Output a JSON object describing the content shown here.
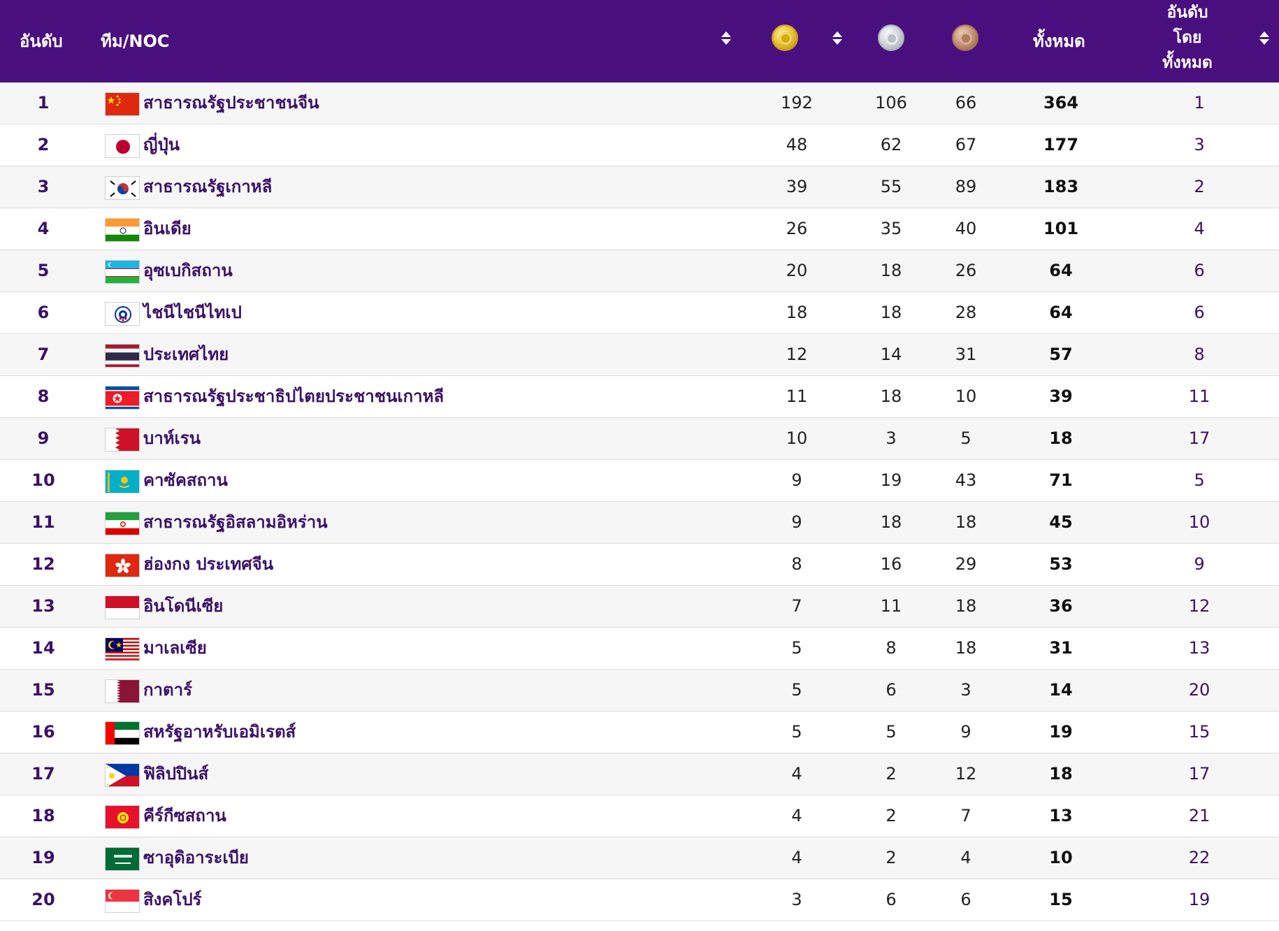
{
  "header": {
    "rank": "อันดับ",
    "team": "ทีม/NOC",
    "total": "ทั้งหมด",
    "rank_by_total_lines": [
      "อันดับ",
      "โดย",
      "ทั้งหมด"
    ],
    "medals": [
      "gold-medal-icon",
      "silver-medal-icon",
      "bronze-medal-icon"
    ]
  },
  "rows": [
    {
      "rank": "1",
      "team": "สาธารณรัฐประชาชนจีน",
      "gold": "192",
      "silver": "106",
      "bronze": "66",
      "total": "364",
      "rank_total": "1",
      "flag": "china"
    },
    {
      "rank": "2",
      "team": "ญี่ปุ่น",
      "gold": "48",
      "silver": "62",
      "bronze": "67",
      "total": "177",
      "rank_total": "3",
      "flag": "japan"
    },
    {
      "rank": "3",
      "team": "สาธารณรัฐเกาหลี",
      "gold": "39",
      "silver": "55",
      "bronze": "89",
      "total": "183",
      "rank_total": "2",
      "flag": "korea"
    },
    {
      "rank": "4",
      "team": "อินเดีย",
      "gold": "26",
      "silver": "35",
      "bronze": "40",
      "total": "101",
      "rank_total": "4",
      "flag": "india"
    },
    {
      "rank": "5",
      "team": "อุซเบกิสถาน",
      "gold": "20",
      "silver": "18",
      "bronze": "26",
      "total": "64",
      "rank_total": "6",
      "flag": "uzbekistan"
    },
    {
      "rank": "6",
      "team": "ไชนีไชนีไทเป",
      "gold": "18",
      "silver": "18",
      "bronze": "28",
      "total": "64",
      "rank_total": "6",
      "flag": "chinese-taipei"
    },
    {
      "rank": "7",
      "team": "ประเทศไทย",
      "gold": "12",
      "silver": "14",
      "bronze": "31",
      "total": "57",
      "rank_total": "8",
      "flag": "thailand"
    },
    {
      "rank": "8",
      "team": "สาธารณรัฐประชาธิปไตยประชาชนเกาหลี",
      "gold": "11",
      "silver": "18",
      "bronze": "10",
      "total": "39",
      "rank_total": "11",
      "flag": "north-korea"
    },
    {
      "rank": "9",
      "team": "บาห์เรน",
      "gold": "10",
      "silver": "3",
      "bronze": "5",
      "total": "18",
      "rank_total": "17",
      "flag": "bahrain"
    },
    {
      "rank": "10",
      "team": "คาซัคสถาน",
      "gold": "9",
      "silver": "19",
      "bronze": "43",
      "total": "71",
      "rank_total": "5",
      "flag": "kazakhstan"
    },
    {
      "rank": "11",
      "team": "สาธารณรัฐอิสลามอิหร่าน",
      "gold": "9",
      "silver": "18",
      "bronze": "18",
      "total": "45",
      "rank_total": "10",
      "flag": "iran"
    },
    {
      "rank": "12",
      "team": "ฮ่องกง ประเทศจีน",
      "gold": "8",
      "silver": "16",
      "bronze": "29",
      "total": "53",
      "rank_total": "9",
      "flag": "hong-kong"
    },
    {
      "rank": "13",
      "team": "อินโดนีเซีย",
      "gold": "7",
      "silver": "11",
      "bronze": "18",
      "total": "36",
      "rank_total": "12",
      "flag": "indonesia"
    },
    {
      "rank": "14",
      "team": "มาเลเซีย",
      "gold": "5",
      "silver": "8",
      "bronze": "18",
      "total": "31",
      "rank_total": "13",
      "flag": "malaysia"
    },
    {
      "rank": "15",
      "team": "กาตาร์",
      "gold": "5",
      "silver": "6",
      "bronze": "3",
      "total": "14",
      "rank_total": "20",
      "flag": "qatar"
    },
    {
      "rank": "16",
      "team": "สหรัฐอาหรับเอมิเรตส์",
      "gold": "5",
      "silver": "5",
      "bronze": "9",
      "total": "19",
      "rank_total": "15",
      "flag": "uae"
    },
    {
      "rank": "17",
      "team": "ฟิลิปปินส์",
      "gold": "4",
      "silver": "2",
      "bronze": "12",
      "total": "18",
      "rank_total": "17",
      "flag": "philippines"
    },
    {
      "rank": "18",
      "team": "คีร์กีซสถาน",
      "gold": "4",
      "silver": "2",
      "bronze": "7",
      "total": "13",
      "rank_total": "21",
      "flag": "kyrgyzstan"
    },
    {
      "rank": "19",
      "team": "ซาอุดิอาระเบีย",
      "gold": "4",
      "silver": "2",
      "bronze": "4",
      "total": "10",
      "rank_total": "22",
      "flag": "saudi-arabia"
    },
    {
      "rank": "20",
      "team": "สิงคโปร์",
      "gold": "3",
      "silver": "6",
      "bronze": "6",
      "total": "15",
      "rank_total": "19",
      "flag": "singapore"
    }
  ]
}
